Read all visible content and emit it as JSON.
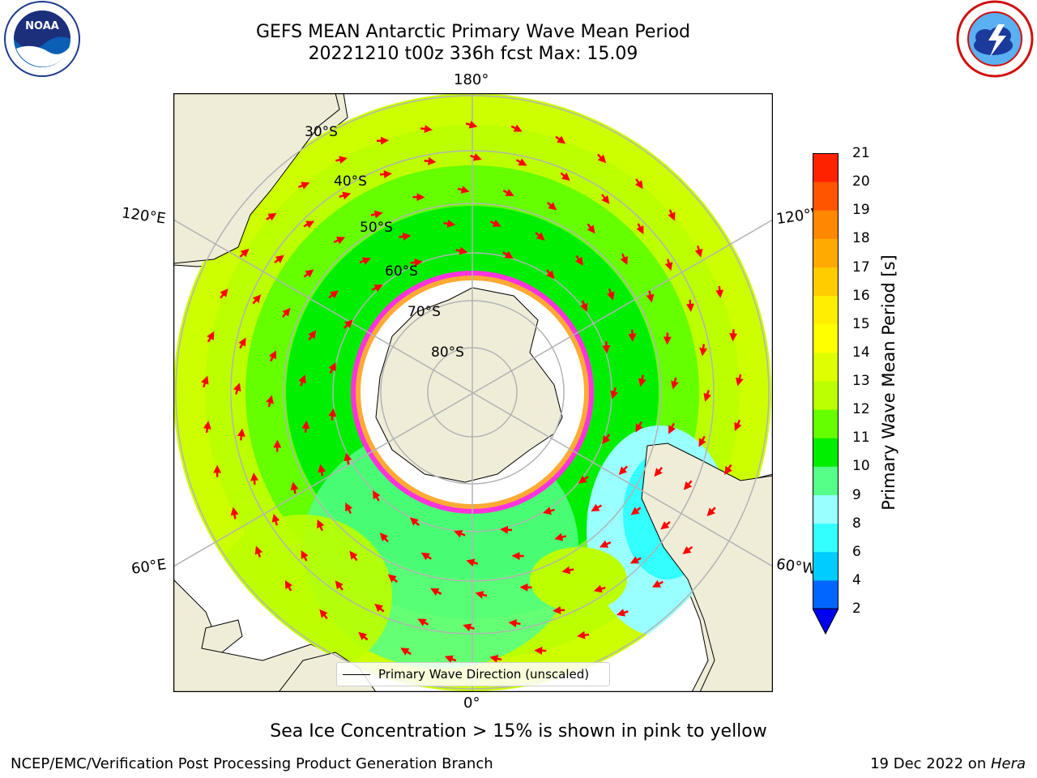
{
  "header": {
    "title_line1": "GEFS MEAN Antarctic Primary Wave Mean Period",
    "title_line2": "20221210 t00z 336h fcst   Max: 15.09"
  },
  "logos": {
    "left": "noaa-logo",
    "left_text": "NOAA",
    "right": "nws-logo"
  },
  "map": {
    "projection": "south-polar-stereographic",
    "longitude_labels": {
      "top": "180°",
      "bottom": "0°",
      "upper_left": "120°E",
      "upper_right": "120°W",
      "lower_left": "60°E",
      "lower_right": "60°W"
    },
    "latitude_labels": [
      "30°S",
      "40°S",
      "50°S",
      "60°S",
      "70°S",
      "80°S"
    ],
    "legend": "Primary Wave Direction (unscaled)",
    "colors": {
      "land": "#efedd8",
      "ice_white": "#ffffff",
      "ice_edge": "#ff33dd",
      "arrow": "#ff0000",
      "graticule": "#b3b3b3"
    }
  },
  "colorbar": {
    "label": "Primary Wave Mean Period [s]",
    "ticks": [
      "2",
      "4",
      "6",
      "8",
      "9",
      "10",
      "11",
      "12",
      "13",
      "14",
      "15",
      "16",
      "17",
      "18",
      "19",
      "20",
      "21"
    ],
    "colors": [
      "#0066ff",
      "#00ccff",
      "#33ffff",
      "#99ffff",
      "#55ff88",
      "#00ee00",
      "#66ff00",
      "#bbff00",
      "#ddff00",
      "#ffff00",
      "#ffee00",
      "#ffcc00",
      "#ffaa00",
      "#ff8800",
      "#ff5500",
      "#ff2200"
    ],
    "under_color": "#0000ee"
  },
  "footer": {
    "subtitle": "Sea Ice Concentration > 15% is shown in pink to yellow",
    "left": "NCEP/EMC/Verification Post Processing Product Generation Branch",
    "right_prefix": "19 Dec 2022 on ",
    "right_host": "Hera"
  }
}
